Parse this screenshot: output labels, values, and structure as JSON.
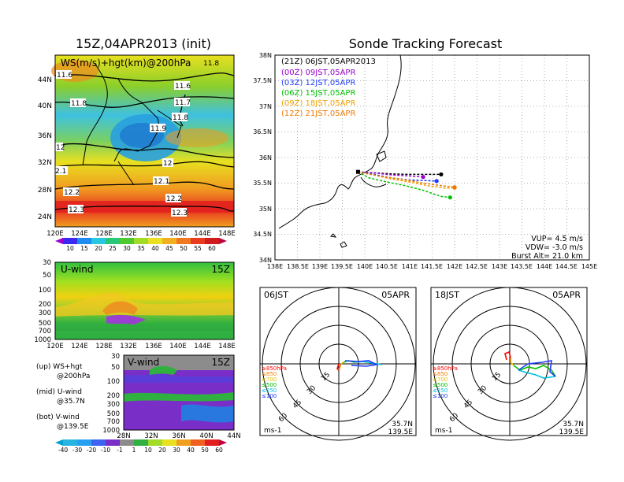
{
  "left_title": "15Z,04APR2013 (init)",
  "right_title": "Sonde Tracking Forecast",
  "map_panel": {
    "label": "WS(m/s)+hgt(km)@200hPa",
    "lon_ticks": [
      "120E",
      "124E",
      "128E",
      "132E",
      "136E",
      "140E",
      "144E",
      "148E"
    ],
    "lat_ticks": [
      "44N",
      "40N",
      "36N",
      "32N",
      "28N",
      "24N"
    ],
    "contour_labels": [
      "11.6",
      "11.6",
      "11.7",
      "11.8",
      "11.8",
      "11.9",
      "12",
      "12",
      "2.1",
      "12.1",
      "12.2",
      "12.2",
      "12.3",
      "12.3",
      "11.8"
    ],
    "colorbar_labels": [
      "10",
      "15",
      "20",
      "25",
      "30",
      "35",
      "40",
      "45",
      "50",
      "55",
      "60"
    ]
  },
  "uwind_panel": {
    "label": "U-wind",
    "time": "15Z",
    "p_ticks": [
      "30",
      "50",
      "100",
      "200",
      "300",
      "500",
      "700",
      "1000"
    ],
    "lon_ticks": [
      "120E",
      "124E",
      "128E",
      "132E",
      "136E",
      "140E",
      "144E",
      "148E"
    ]
  },
  "vwind_panel": {
    "label": "V-wind",
    "time": "15Z",
    "p_ticks": [
      "30",
      "50",
      "100",
      "200",
      "300",
      "500",
      "700",
      "1000"
    ],
    "lat_ticks": [
      "28N",
      "32N",
      "36N",
      "40N",
      "44N"
    ]
  },
  "panel_notes": {
    "up": "(up) WS+hgt",
    "up2": "@200hPa",
    "mid": "(mid) U-wind",
    "mid2": "@35.7N",
    "bot": "(bot) V-wind",
    "bot2": "@139.5E"
  },
  "bottom_colorbar_labels": [
    "-40",
    "-30",
    "-20",
    "-10",
    "-1",
    "1",
    "10",
    "20",
    "30",
    "40",
    "50",
    "60"
  ],
  "track_panel": {
    "lat_ticks": [
      "38N",
      "37.5N",
      "37N",
      "36.5N",
      "36N",
      "35.5N",
      "35N",
      "34.5N",
      "34N"
    ],
    "lon_ticks": [
      "138E",
      "138.5E",
      "139E",
      "139.5E",
      "140E",
      "140.5E",
      "141E",
      "141.5E",
      "142E",
      "142.5E",
      "143E",
      "143.5E",
      "144E",
      "144.5E",
      "145E"
    ],
    "legend": [
      {
        "label": "(21Z) 06JST,05APR2013",
        "color": "#000000"
      },
      {
        "label": "(00Z) 09JST,05APR",
        "color": "#9900cc"
      },
      {
        "label": "(03Z) 12JST,05APR",
        "color": "#1e3cff"
      },
      {
        "label": "(06Z) 15JST,05APR",
        "color": "#00c000"
      },
      {
        "label": "(09Z) 18JST,05APR",
        "color": "#f0a000"
      },
      {
        "label": "(12Z) 21JST,05APR",
        "color": "#f07800"
      }
    ],
    "info": {
      "vup": "VUP= 4.5 m/s",
      "vdw": "VDW= -3.0 m/s",
      "burst": "Burst Alt= 21.0 km"
    }
  },
  "chart_data": [
    {
      "type": "line",
      "title": "Sonde Tracking Forecast",
      "xlabel": "",
      "ylabel": "",
      "xlim": [
        138,
        145
      ],
      "ylim": [
        34,
        38
      ],
      "series": [
        {
          "name": "(21Z) 06JST,05APR2013",
          "x": [
            139.85,
            140.2,
            140.6,
            141.0,
            141.4,
            141.7
          ],
          "y": [
            35.72,
            35.7,
            35.68,
            35.67,
            35.67,
            35.67
          ]
        },
        {
          "name": "(00Z) 09JST,05APR",
          "x": [
            139.85,
            140.2,
            140.6,
            141.0,
            141.3
          ],
          "y": [
            35.72,
            35.7,
            35.66,
            35.64,
            35.62
          ]
        },
        {
          "name": "(03Z) 12JST,05APR",
          "x": [
            139.85,
            140.2,
            140.6,
            141.0,
            141.4,
            141.6
          ],
          "y": [
            35.72,
            35.67,
            35.6,
            35.56,
            35.55,
            35.54
          ]
        },
        {
          "name": "(06Z) 15JST,05APR",
          "x": [
            139.85,
            140.1,
            140.5,
            140.9,
            141.3,
            141.7,
            141.9
          ],
          "y": [
            35.72,
            35.6,
            35.52,
            35.45,
            35.36,
            35.24,
            35.22
          ]
        },
        {
          "name": "(09Z) 18JST,05APR",
          "x": [
            139.85,
            140.2,
            140.6,
            141.0,
            141.4,
            141.8,
            142.0
          ],
          "y": [
            35.72,
            35.66,
            35.58,
            35.52,
            35.45,
            35.4,
            35.41
          ]
        },
        {
          "name": "(12Z) 21JST,05APR",
          "x": [
            139.85,
            140.3,
            140.8,
            141.3,
            141.8,
            142.0
          ],
          "y": [
            35.72,
            35.64,
            35.58,
            35.5,
            35.44,
            35.42
          ]
        }
      ]
    }
  ],
  "hodo_left": {
    "time": "06JST",
    "date": "05APR",
    "ring_labels": [
      "15",
      "30",
      "45",
      "60"
    ],
    "levels": [
      {
        "label": "≥850hPa",
        "color": "#ff0000"
      },
      {
        "label": "≤850",
        "color": "#f08000"
      },
      {
        "label": "≤700",
        "color": "#e0c000"
      },
      {
        "label": "≤500",
        "color": "#00c000"
      },
      {
        "label": "≤250",
        "color": "#00c0e0"
      },
      {
        "label": "≤100",
        "color": "#1e3cff"
      }
    ],
    "unit": "ms-1",
    "lat": "35.7N",
    "lon": "139.5E"
  },
  "hodo_right": {
    "time": "18JST",
    "date": "05APR",
    "ring_labels": [
      "15",
      "30",
      "45",
      "60"
    ],
    "levels": [
      {
        "label": "≥850hPa",
        "color": "#ff0000"
      },
      {
        "label": "≤850",
        "color": "#f08000"
      },
      {
        "label": "≤700",
        "color": "#e0c000"
      },
      {
        "label": "≤500",
        "color": "#00c000"
      },
      {
        "label": "≤250",
        "color": "#00c0e0"
      },
      {
        "label": "≤100",
        "color": "#1e3cff"
      }
    ],
    "unit": "ms-1",
    "lat": "35.7N",
    "lon": "139.5E"
  }
}
